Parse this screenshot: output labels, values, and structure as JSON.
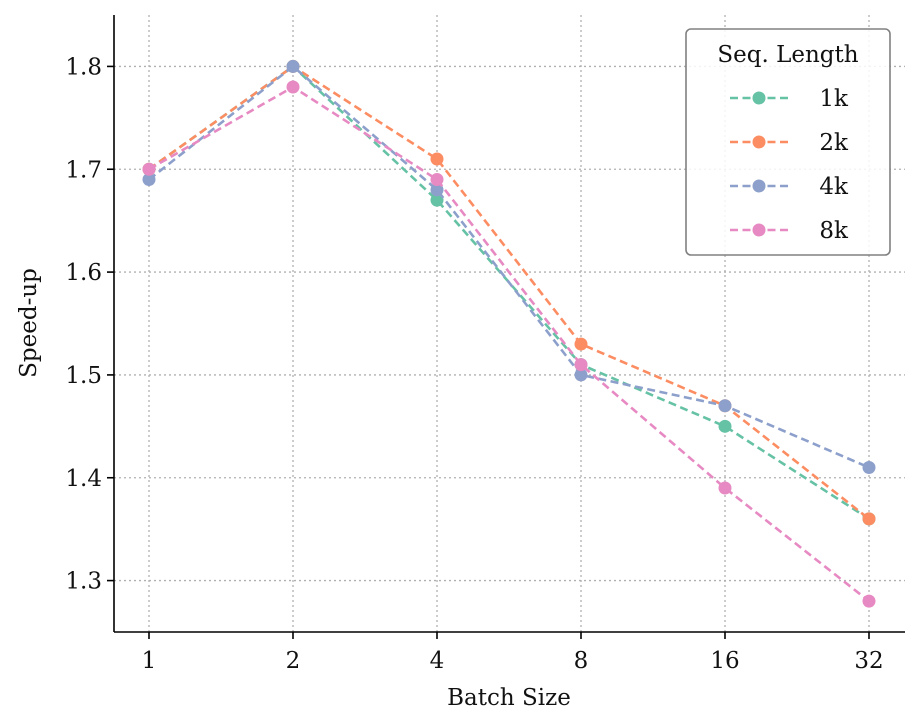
{
  "chart_data": {
    "type": "line",
    "title": "",
    "xlabel": "Batch Size",
    "ylabel": "Speed-up",
    "categories": [
      "1",
      "2",
      "4",
      "8",
      "16",
      "32"
    ],
    "yticks": [
      "1.3",
      "1.4",
      "1.5",
      "1.6",
      "1.7",
      "1.8"
    ],
    "ylim": [
      1.25,
      1.85
    ],
    "grid": true,
    "legend": {
      "title": "Seq. Length",
      "position": "top-right"
    },
    "series": [
      {
        "name": "1k",
        "color": "#66c2a5",
        "values": [
          1.7,
          1.8,
          1.67,
          1.51,
          1.45,
          1.36
        ]
      },
      {
        "name": "2k",
        "color": "#fc8d62",
        "values": [
          1.7,
          1.8,
          1.71,
          1.53,
          1.47,
          1.36
        ]
      },
      {
        "name": "4k",
        "color": "#8da0cb",
        "values": [
          1.69,
          1.8,
          1.68,
          1.5,
          1.47,
          1.41
        ]
      },
      {
        "name": "8k",
        "color": "#e78ac3",
        "values": [
          1.7,
          1.78,
          1.69,
          1.51,
          1.39,
          1.28
        ]
      }
    ]
  }
}
